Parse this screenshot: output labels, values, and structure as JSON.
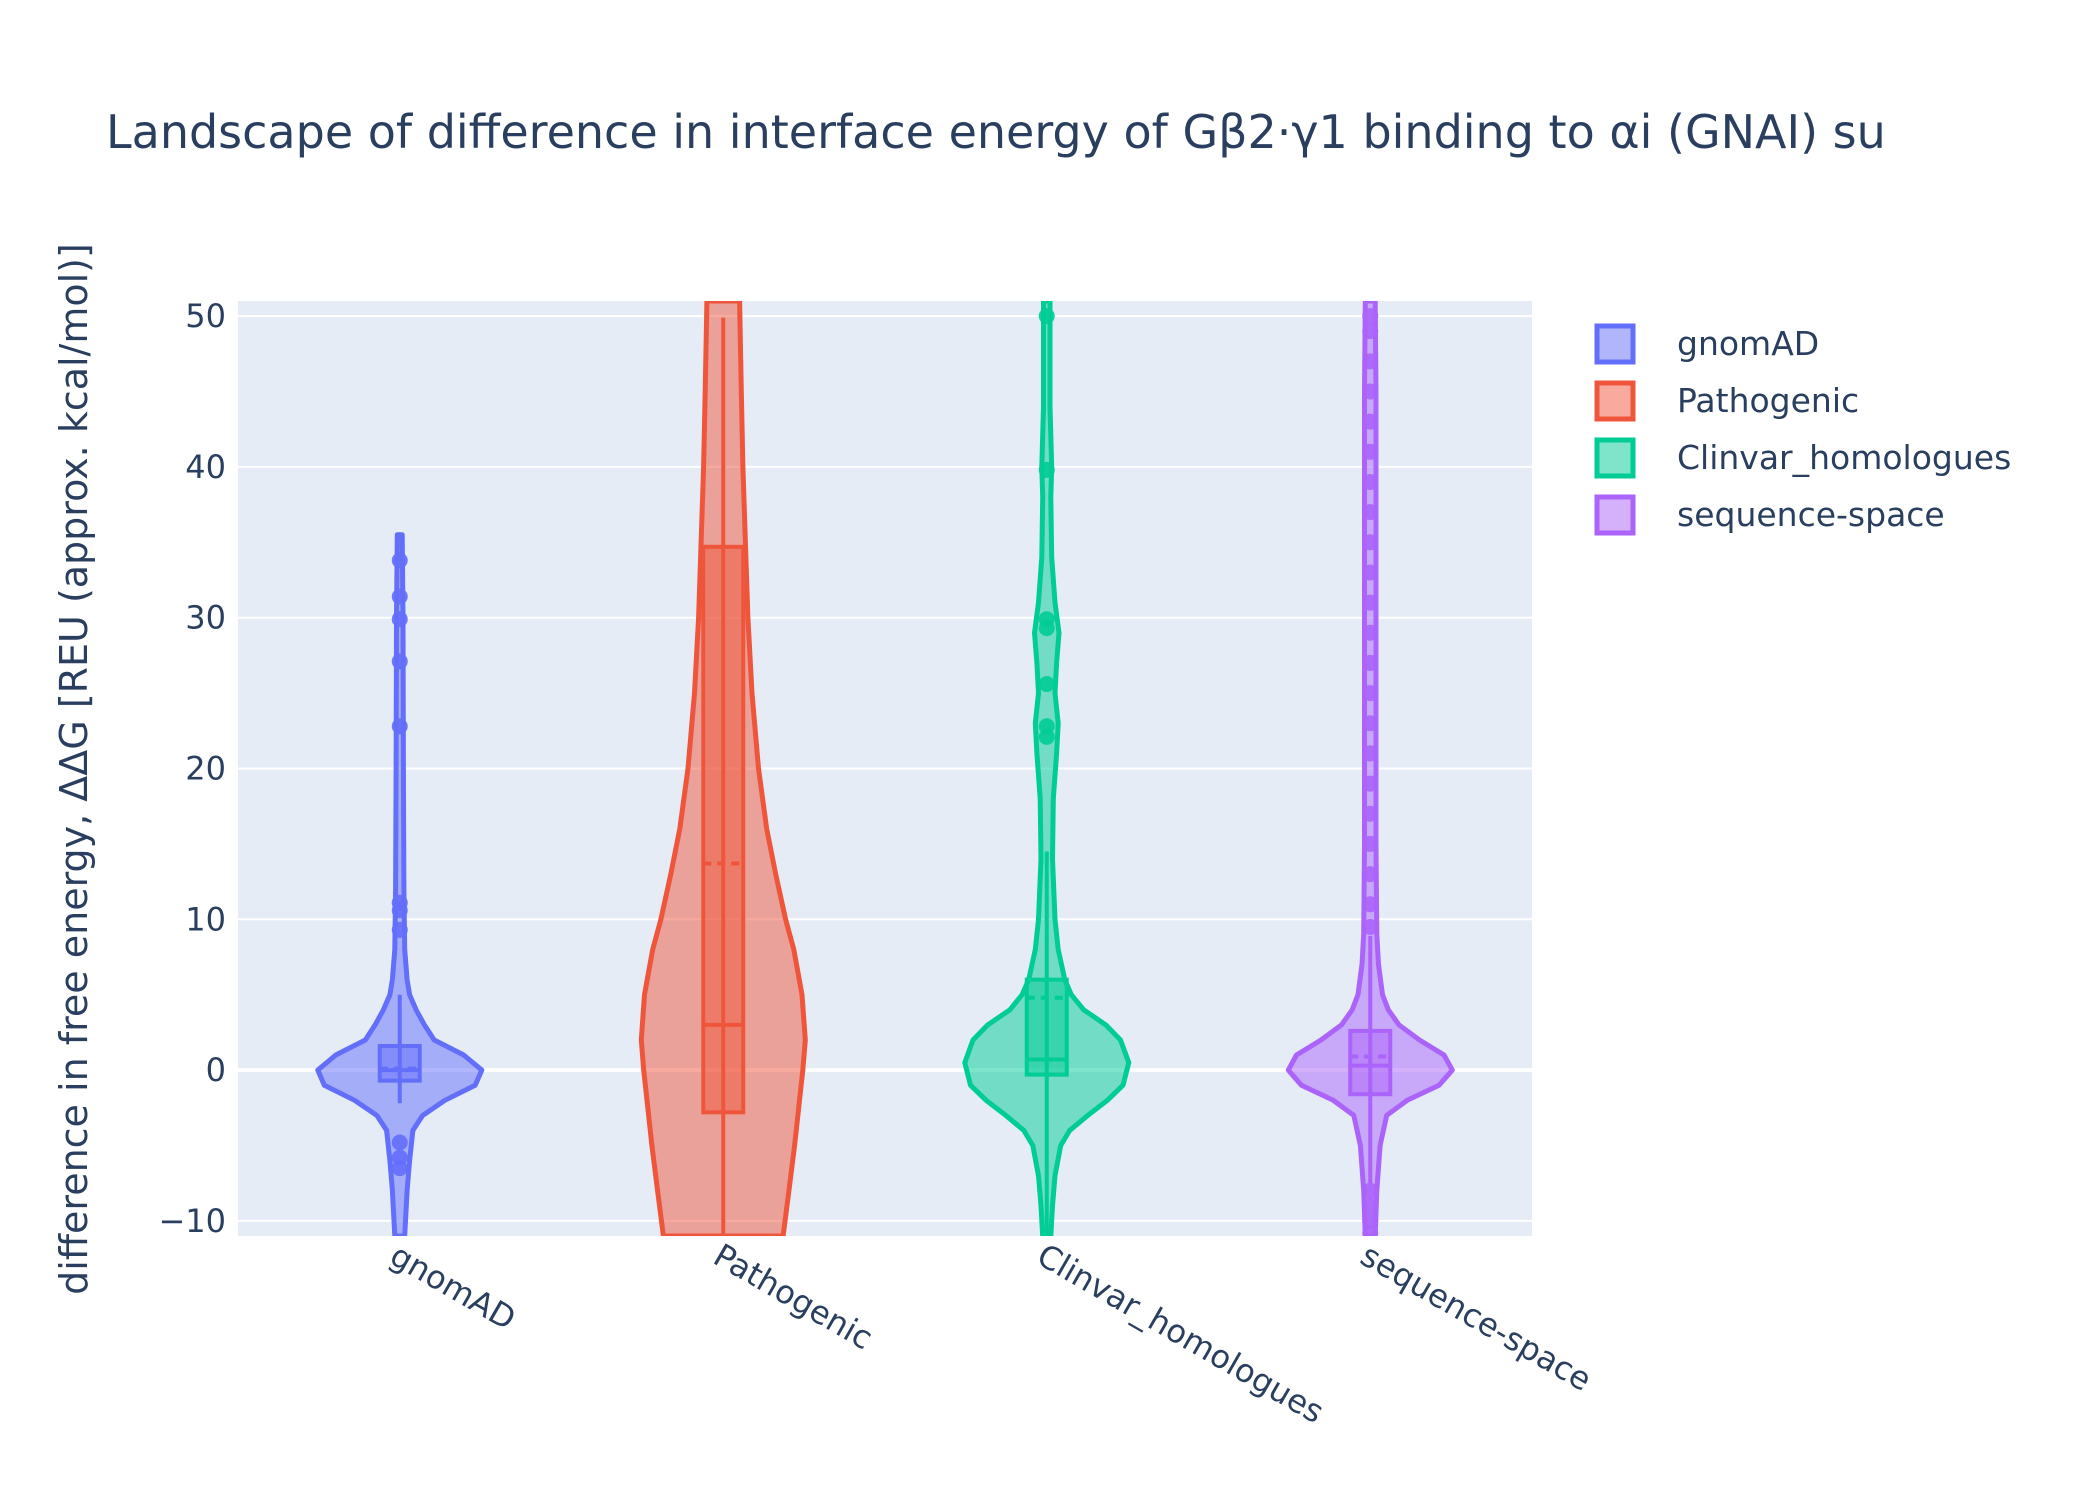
{
  "chart_data": {
    "type": "violin",
    "title": "Landscape of difference in interface energy of Gβ2·γ1 binding to αi (GNAI) su",
    "xlabel": "",
    "ylabel": "difference in free energy, ΔΔG [REU (approx. kcal/mol)]",
    "ylim": [
      -11,
      51
    ],
    "yticks": [
      -10,
      0,
      10,
      20,
      30,
      40,
      50
    ],
    "ytick_labels": [
      "−10",
      "0",
      "10",
      "20",
      "30",
      "40",
      "50"
    ],
    "categories": [
      "gnomAD",
      "Pathogenic",
      "Clinvar_homologues",
      "sequence-space"
    ],
    "legend_position": "top-right",
    "series": [
      {
        "name": "gnomAD",
        "color": "#636efa",
        "fill": "#b2b7fc",
        "box": {
          "q1": -0.7,
          "median": 0.0,
          "mean": 0.1,
          "q3": 1.6,
          "whisker_low": -2.2,
          "whisker_high": 5.0
        },
        "range": [
          -11,
          35.5
        ],
        "outliers": [
          -4.8,
          -5.8,
          -6.5,
          9.3,
          10.6,
          11.1,
          22.8,
          27.1,
          29.9,
          31.4,
          33.8
        ],
        "density": [
          [
            -11,
            0.06
          ],
          [
            -8,
            0.09
          ],
          [
            -6,
            0.12
          ],
          [
            -4,
            0.16
          ],
          [
            -3,
            0.28
          ],
          [
            -2,
            0.55
          ],
          [
            -1,
            0.92
          ],
          [
            0,
            1.0
          ],
          [
            1,
            0.78
          ],
          [
            2,
            0.42
          ],
          [
            3,
            0.3
          ],
          [
            4,
            0.2
          ],
          [
            5,
            0.12
          ],
          [
            6,
            0.09
          ],
          [
            8,
            0.06
          ],
          [
            12,
            0.05
          ],
          [
            20,
            0.045
          ],
          [
            30,
            0.04
          ],
          [
            35.5,
            0.03
          ]
        ]
      },
      {
        "name": "Pathogenic",
        "color": "#ef553b",
        "fill": "#f7a99c",
        "box": {
          "q1": -2.8,
          "median": 3.0,
          "mean": 13.7,
          "q3": 34.7,
          "whisker_low": -11,
          "whisker_high": 49.9
        },
        "range": [
          -11,
          51
        ],
        "outliers": [],
        "density": [
          [
            -11,
            0.73
          ],
          [
            -8,
            0.8
          ],
          [
            -5,
            0.87
          ],
          [
            -2,
            0.93
          ],
          [
            0,
            0.97
          ],
          [
            2,
            1.0
          ],
          [
            5,
            0.96
          ],
          [
            8,
            0.86
          ],
          [
            10,
            0.76
          ],
          [
            13,
            0.64
          ],
          [
            16,
            0.53
          ],
          [
            20,
            0.43
          ],
          [
            25,
            0.35
          ],
          [
            30,
            0.3
          ],
          [
            35,
            0.27
          ],
          [
            40,
            0.24
          ],
          [
            45,
            0.22
          ],
          [
            51,
            0.2
          ]
        ]
      },
      {
        "name": "Clinvar_homologues",
        "color": "#00cc96",
        "fill": "#7fe5ca",
        "box": {
          "q1": -0.3,
          "median": 0.7,
          "mean": 4.8,
          "q3": 6.0,
          "whisker_low": -11,
          "whisker_high": 14.5
        },
        "range": [
          -11,
          51
        ],
        "outliers": [
          22.1,
          22.8,
          25.6,
          29.3,
          29.9,
          39.8,
          50.0
        ],
        "density": [
          [
            -11,
            0.05
          ],
          [
            -9,
            0.07
          ],
          [
            -7,
            0.1
          ],
          [
            -5,
            0.17
          ],
          [
            -4,
            0.28
          ],
          [
            -3,
            0.5
          ],
          [
            -2,
            0.74
          ],
          [
            -1,
            0.93
          ],
          [
            0.5,
            1.0
          ],
          [
            2,
            0.9
          ],
          [
            3,
            0.72
          ],
          [
            4,
            0.45
          ],
          [
            5,
            0.3
          ],
          [
            6,
            0.22
          ],
          [
            8,
            0.14
          ],
          [
            10,
            0.1
          ],
          [
            14,
            0.07
          ],
          [
            18,
            0.08
          ],
          [
            21,
            0.12
          ],
          [
            23,
            0.14
          ],
          [
            25,
            0.1
          ],
          [
            27,
            0.12
          ],
          [
            29,
            0.15
          ],
          [
            31,
            0.1
          ],
          [
            34,
            0.06
          ],
          [
            38,
            0.05
          ],
          [
            40,
            0.06
          ],
          [
            44,
            0.04
          ],
          [
            51,
            0.04
          ]
        ]
      },
      {
        "name": "sequence-space",
        "color": "#ab63fa",
        "fill": "#d5b1fc",
        "box": {
          "q1": -1.6,
          "median": 0.3,
          "mean": 0.9,
          "q3": 2.6,
          "whisker_low": -7.5,
          "whisker_high": 8.9
        },
        "range": [
          -11,
          51
        ],
        "outliers": [
          -8,
          -9,
          -10,
          -10.8,
          9.5,
          11,
          13,
          15,
          17,
          19,
          21,
          23,
          25,
          27,
          29,
          31,
          33,
          35,
          37,
          39,
          41,
          43,
          45,
          47,
          49,
          50
        ],
        "density": [
          [
            -11,
            0.06
          ],
          [
            -8,
            0.08
          ],
          [
            -5,
            0.12
          ],
          [
            -3,
            0.2
          ],
          [
            -2,
            0.45
          ],
          [
            -1,
            0.84
          ],
          [
            0,
            1.0
          ],
          [
            1,
            0.9
          ],
          [
            2,
            0.6
          ],
          [
            3,
            0.35
          ],
          [
            4,
            0.22
          ],
          [
            5,
            0.15
          ],
          [
            7,
            0.1
          ],
          [
            9,
            0.08
          ],
          [
            15,
            0.07
          ],
          [
            30,
            0.07
          ],
          [
            45,
            0.07
          ],
          [
            51,
            0.06
          ]
        ]
      }
    ]
  }
}
